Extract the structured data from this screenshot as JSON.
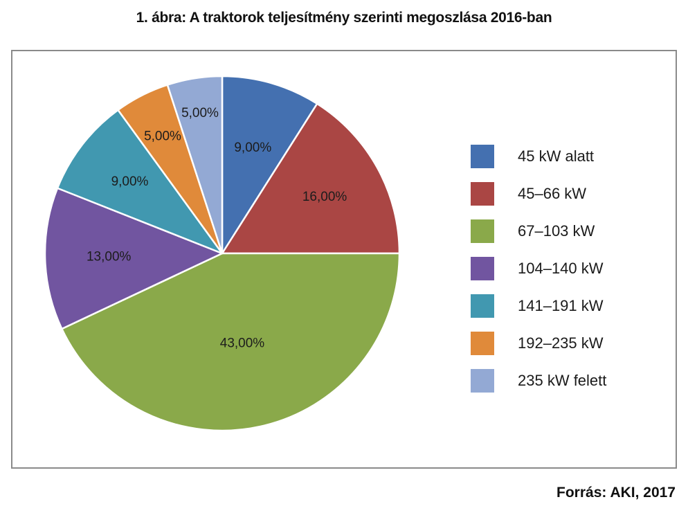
{
  "chart_data": {
    "type": "pie",
    "title": "1. ábra: A traktorok teljesítmény szerinti megoszlása 2016-ban",
    "categories": [
      "45 kW alatt",
      "45–66 kW",
      "67–103 kW",
      "104–140 kW",
      "141–191 kW",
      "192–235 kW",
      "235 kW felett"
    ],
    "values": [
      9,
      16,
      43,
      13,
      9,
      5,
      5
    ],
    "labels": [
      "9,00%",
      "16,00%",
      "43,00%",
      "13,00%",
      "9,00%",
      "5,00%",
      "5,00%"
    ],
    "colors": [
      "#4470b0",
      "#aa4644",
      "#8aa94a",
      "#7155a0",
      "#4198b0",
      "#e08a3a",
      "#93a9d4"
    ],
    "legend_position": "right",
    "start": "top, clockwise"
  },
  "source": "Forrás: AKI, 2017"
}
